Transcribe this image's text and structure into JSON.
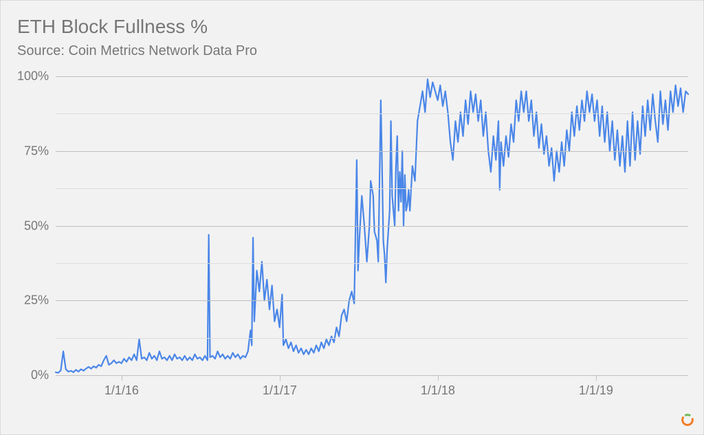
{
  "title": "ETH Block Fullness %",
  "subtitle": "Source: Coin Metrics Network Data Pro",
  "chart": {
    "type": "line",
    "background_color": "#f2f2f2",
    "line_color": "#4a86e8",
    "line_width": 2.2,
    "grid_color_major": "#bfbfbf",
    "grid_color_minor": "#dcdcdc",
    "text_color": "#777777",
    "title_fontsize": 28,
    "subtitle_fontsize": 20,
    "tick_fontsize": 18,
    "x_start": "2015-08-01",
    "x_end": "2019-08-01",
    "x_ticks": [
      {
        "t": 0.1042,
        "label": "1/1/16"
      },
      {
        "t": 0.3542,
        "label": "1/1/17"
      },
      {
        "t": 0.6042,
        "label": "1/1/18"
      },
      {
        "t": 0.8542,
        "label": "1/1/19"
      }
    ],
    "ylim": [
      0,
      100
    ],
    "y_ticks_major": [
      {
        "v": 0,
        "label": "0%"
      },
      {
        "v": 25,
        "label": "25%"
      },
      {
        "v": 50,
        "label": "50%"
      },
      {
        "v": 75,
        "label": "75%"
      },
      {
        "v": 100,
        "label": "100%"
      }
    ],
    "y_ticks_minor": [
      12.5,
      37.5,
      62.5,
      87.5
    ],
    "data": [
      [
        0.0,
        1.0
      ],
      [
        0.004,
        0.8
      ],
      [
        0.008,
        1.6
      ],
      [
        0.012,
        8.0
      ],
      [
        0.016,
        2.0
      ],
      [
        0.02,
        1.2
      ],
      [
        0.024,
        1.5
      ],
      [
        0.028,
        1.0
      ],
      [
        0.032,
        1.8
      ],
      [
        0.036,
        1.2
      ],
      [
        0.04,
        2.0
      ],
      [
        0.044,
        1.5
      ],
      [
        0.048,
        2.2
      ],
      [
        0.052,
        2.8
      ],
      [
        0.056,
        2.2
      ],
      [
        0.06,
        3.0
      ],
      [
        0.064,
        2.5
      ],
      [
        0.068,
        3.5
      ],
      [
        0.072,
        3.0
      ],
      [
        0.076,
        5.0
      ],
      [
        0.08,
        6.5
      ],
      [
        0.084,
        3.5
      ],
      [
        0.088,
        4.0
      ],
      [
        0.092,
        5.0
      ],
      [
        0.096,
        4.0
      ],
      [
        0.1,
        4.5
      ],
      [
        0.104,
        4.0
      ],
      [
        0.108,
        5.5
      ],
      [
        0.112,
        4.5
      ],
      [
        0.116,
        6.0
      ],
      [
        0.12,
        5.0
      ],
      [
        0.124,
        7.0
      ],
      [
        0.128,
        5.0
      ],
      [
        0.132,
        12.0
      ],
      [
        0.136,
        5.5
      ],
      [
        0.14,
        6.0
      ],
      [
        0.144,
        5.0
      ],
      [
        0.148,
        7.5
      ],
      [
        0.152,
        5.5
      ],
      [
        0.156,
        6.5
      ],
      [
        0.16,
        5.0
      ],
      [
        0.164,
        8.0
      ],
      [
        0.168,
        5.5
      ],
      [
        0.172,
        6.0
      ],
      [
        0.176,
        5.0
      ],
      [
        0.18,
        6.5
      ],
      [
        0.184,
        5.0
      ],
      [
        0.188,
        7.0
      ],
      [
        0.192,
        5.5
      ],
      [
        0.196,
        6.0
      ],
      [
        0.2,
        5.0
      ],
      [
        0.204,
        6.5
      ],
      [
        0.208,
        5.0
      ],
      [
        0.212,
        6.0
      ],
      [
        0.216,
        5.0
      ],
      [
        0.22,
        7.0
      ],
      [
        0.224,
        5.5
      ],
      [
        0.228,
        6.0
      ],
      [
        0.232,
        5.0
      ],
      [
        0.236,
        6.5
      ],
      [
        0.24,
        5.0
      ],
      [
        0.242,
        47.0
      ],
      [
        0.244,
        6.0
      ],
      [
        0.248,
        6.5
      ],
      [
        0.252,
        5.5
      ],
      [
        0.256,
        8.0
      ],
      [
        0.26,
        6.0
      ],
      [
        0.264,
        7.0
      ],
      [
        0.268,
        5.5
      ],
      [
        0.272,
        6.5
      ],
      [
        0.276,
        5.5
      ],
      [
        0.28,
        7.5
      ],
      [
        0.284,
        6.0
      ],
      [
        0.288,
        7.0
      ],
      [
        0.292,
        5.5
      ],
      [
        0.296,
        6.5
      ],
      [
        0.3,
        6.0
      ],
      [
        0.304,
        8.0
      ],
      [
        0.308,
        15.0
      ],
      [
        0.31,
        10.0
      ],
      [
        0.312,
        46.0
      ],
      [
        0.314,
        18.0
      ],
      [
        0.318,
        35.0
      ],
      [
        0.322,
        28.0
      ],
      [
        0.326,
        38.0
      ],
      [
        0.33,
        25.0
      ],
      [
        0.334,
        32.0
      ],
      [
        0.338,
        22.0
      ],
      [
        0.342,
        30.0
      ],
      [
        0.346,
        18.0
      ],
      [
        0.35,
        22.0
      ],
      [
        0.354,
        16.0
      ],
      [
        0.358,
        27.0
      ],
      [
        0.36,
        10.0
      ],
      [
        0.364,
        12.0
      ],
      [
        0.368,
        9.0
      ],
      [
        0.372,
        11.0
      ],
      [
        0.376,
        8.0
      ],
      [
        0.38,
        10.0
      ],
      [
        0.384,
        7.5
      ],
      [
        0.388,
        9.0
      ],
      [
        0.392,
        7.0
      ],
      [
        0.396,
        8.5
      ],
      [
        0.4,
        7.0
      ],
      [
        0.404,
        9.0
      ],
      [
        0.408,
        7.5
      ],
      [
        0.412,
        10.0
      ],
      [
        0.416,
        8.0
      ],
      [
        0.42,
        11.0
      ],
      [
        0.424,
        9.0
      ],
      [
        0.428,
        12.0
      ],
      [
        0.432,
        10.0
      ],
      [
        0.436,
        13.0
      ],
      [
        0.44,
        11.0
      ],
      [
        0.444,
        16.0
      ],
      [
        0.448,
        13.0
      ],
      [
        0.452,
        20.0
      ],
      [
        0.456,
        22.0
      ],
      [
        0.46,
        18.0
      ],
      [
        0.464,
        25.0
      ],
      [
        0.468,
        28.0
      ],
      [
        0.472,
        24.0
      ],
      [
        0.476,
        72.0
      ],
      [
        0.478,
        35.0
      ],
      [
        0.48,
        45.0
      ],
      [
        0.484,
        60.0
      ],
      [
        0.488,
        50.0
      ],
      [
        0.492,
        38.0
      ],
      [
        0.496,
        50.0
      ],
      [
        0.498,
        65.0
      ],
      [
        0.502,
        60.0
      ],
      [
        0.504,
        48.0
      ],
      [
        0.508,
        45.0
      ],
      [
        0.51,
        38.0
      ],
      [
        0.512,
        65.0
      ],
      [
        0.514,
        92.0
      ],
      [
        0.516,
        70.0
      ],
      [
        0.518,
        45.0
      ],
      [
        0.52,
        40.0
      ],
      [
        0.522,
        31.0
      ],
      [
        0.524,
        42.0
      ],
      [
        0.528,
        55.0
      ],
      [
        0.53,
        85.0
      ],
      [
        0.532,
        60.0
      ],
      [
        0.536,
        50.0
      ],
      [
        0.538,
        70.0
      ],
      [
        0.54,
        80.0
      ],
      [
        0.542,
        55.0
      ],
      [
        0.544,
        68.0
      ],
      [
        0.546,
        58.0
      ],
      [
        0.548,
        75.0
      ],
      [
        0.55,
        50.0
      ],
      [
        0.552,
        67.0
      ],
      [
        0.554,
        55.0
      ],
      [
        0.556,
        57.0
      ],
      [
        0.558,
        62.0
      ],
      [
        0.56,
        55.0
      ],
      [
        0.564,
        70.0
      ],
      [
        0.568,
        65.0
      ],
      [
        0.572,
        85.0
      ],
      [
        0.576,
        90.0
      ],
      [
        0.58,
        95.0
      ],
      [
        0.584,
        88.0
      ],
      [
        0.588,
        99.0
      ],
      [
        0.592,
        93.0
      ],
      [
        0.596,
        98.0
      ],
      [
        0.6,
        95.0
      ],
      [
        0.604,
        92.0
      ],
      [
        0.608,
        97.0
      ],
      [
        0.612,
        90.0
      ],
      [
        0.616,
        95.0
      ],
      [
        0.62,
        88.0
      ],
      [
        0.624,
        78.0
      ],
      [
        0.628,
        72.0
      ],
      [
        0.632,
        85.0
      ],
      [
        0.636,
        78.0
      ],
      [
        0.64,
        88.0
      ],
      [
        0.644,
        80.0
      ],
      [
        0.648,
        92.0
      ],
      [
        0.652,
        84.0
      ],
      [
        0.656,
        95.0
      ],
      [
        0.66,
        88.0
      ],
      [
        0.664,
        94.0
      ],
      [
        0.668,
        85.0
      ],
      [
        0.672,
        92.0
      ],
      [
        0.676,
        80.0
      ],
      [
        0.68,
        88.0
      ],
      [
        0.684,
        75.0
      ],
      [
        0.688,
        68.0
      ],
      [
        0.692,
        80.0
      ],
      [
        0.696,
        72.0
      ],
      [
        0.7,
        85.0
      ],
      [
        0.702,
        62.0
      ],
      [
        0.704,
        78.0
      ],
      [
        0.708,
        70.0
      ],
      [
        0.712,
        80.0
      ],
      [
        0.716,
        73.0
      ],
      [
        0.72,
        84.0
      ],
      [
        0.724,
        78.0
      ],
      [
        0.728,
        92.0
      ],
      [
        0.732,
        85.0
      ],
      [
        0.736,
        95.0
      ],
      [
        0.74,
        88.0
      ],
      [
        0.744,
        95.0
      ],
      [
        0.748,
        85.0
      ],
      [
        0.752,
        92.0
      ],
      [
        0.756,
        80.0
      ],
      [
        0.76,
        88.0
      ],
      [
        0.764,
        76.0
      ],
      [
        0.768,
        84.0
      ],
      [
        0.772,
        74.0
      ],
      [
        0.776,
        80.0
      ],
      [
        0.78,
        70.0
      ],
      [
        0.784,
        76.0
      ],
      [
        0.788,
        65.0
      ],
      [
        0.792,
        75.0
      ],
      [
        0.796,
        68.0
      ],
      [
        0.8,
        78.0
      ],
      [
        0.804,
        70.0
      ],
      [
        0.808,
        82.0
      ],
      [
        0.812,
        75.0
      ],
      [
        0.816,
        88.0
      ],
      [
        0.82,
        80.0
      ],
      [
        0.824,
        90.0
      ],
      [
        0.828,
        82.0
      ],
      [
        0.832,
        92.0
      ],
      [
        0.836,
        85.0
      ],
      [
        0.84,
        95.0
      ],
      [
        0.844,
        88.0
      ],
      [
        0.848,
        94.0
      ],
      [
        0.852,
        85.0
      ],
      [
        0.856,
        92.0
      ],
      [
        0.86,
        80.0
      ],
      [
        0.864,
        90.0
      ],
      [
        0.868,
        78.0
      ],
      [
        0.872,
        88.0
      ],
      [
        0.876,
        75.0
      ],
      [
        0.88,
        85.0
      ],
      [
        0.884,
        72.0
      ],
      [
        0.888,
        82.0
      ],
      [
        0.892,
        70.0
      ],
      [
        0.896,
        80.0
      ],
      [
        0.9,
        68.0
      ],
      [
        0.904,
        85.0
      ],
      [
        0.908,
        70.0
      ],
      [
        0.912,
        88.0
      ],
      [
        0.916,
        72.0
      ],
      [
        0.92,
        85.0
      ],
      [
        0.924,
        74.0
      ],
      [
        0.928,
        90.0
      ],
      [
        0.932,
        80.0
      ],
      [
        0.936,
        92.0
      ],
      [
        0.94,
        82.0
      ],
      [
        0.944,
        94.0
      ],
      [
        0.948,
        85.0
      ],
      [
        0.952,
        78.0
      ],
      [
        0.956,
        95.0
      ],
      [
        0.96,
        84.0
      ],
      [
        0.964,
        92.0
      ],
      [
        0.968,
        82.0
      ],
      [
        0.972,
        95.0
      ],
      [
        0.976,
        88.0
      ],
      [
        0.98,
        97.0
      ],
      [
        0.984,
        90.0
      ],
      [
        0.988,
        96.0
      ],
      [
        0.992,
        88.0
      ],
      [
        0.996,
        95.0
      ],
      [
        1.0,
        94.0
      ]
    ]
  },
  "logo": {
    "color1": "#f47a20",
    "color2": "#6fb955"
  }
}
